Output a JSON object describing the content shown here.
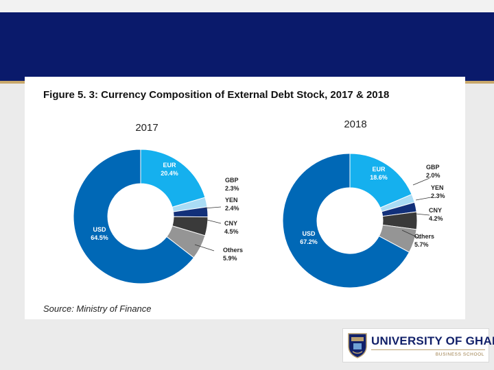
{
  "figure": {
    "title": "Figure 5. 3: Currency Composition of External Debt Stock, 2017 & 2018",
    "source": "Source: Ministry of Finance"
  },
  "chart_data": [
    {
      "type": "pie",
      "title": "2017",
      "unit": "%",
      "categories": [
        "EUR",
        "GBP",
        "YEN",
        "CNY",
        "Others",
        "USD"
      ],
      "values": [
        20.4,
        2.3,
        2.4,
        4.5,
        5.9,
        64.5
      ],
      "value_labels": [
        "20.4%",
        "2.3%",
        "2.4%",
        "4.5%",
        "5.9%",
        "64.5%"
      ],
      "colors": [
        "#15b0ee",
        "#a9dcf5",
        "#12307a",
        "#3a3a3a",
        "#959595",
        "#0068b6"
      ]
    },
    {
      "type": "pie",
      "title": "2018",
      "unit": "%",
      "categories": [
        "EUR",
        "GBP",
        "YEN",
        "CNY",
        "Others",
        "USD"
      ],
      "values": [
        18.6,
        2.0,
        2.3,
        4.2,
        5.7,
        67.2
      ],
      "value_labels": [
        "18.6%",
        "2.0%",
        "2.3%",
        "4.2%",
        "5.7%",
        "67.2%"
      ],
      "colors": [
        "#15b0ee",
        "#a9dcf5",
        "#12307a",
        "#3a3a3a",
        "#959595",
        "#0068b6"
      ]
    }
  ],
  "logo": {
    "name": "UNIVERSITY OF GHANA",
    "subtitle": "BUSINESS SCHOOL",
    "colors": {
      "navy": "#12216a",
      "gold": "#9a7b46"
    }
  }
}
